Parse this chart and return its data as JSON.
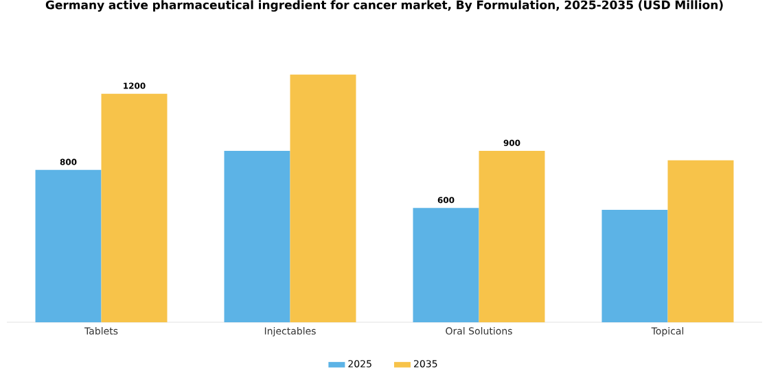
{
  "chart_data": {
    "type": "bar",
    "title": "Germany active pharmaceutical ingredient for cancer market, By Formulation, 2025-2035 (USD Million)",
    "categories": [
      "Tablets",
      "Injectables",
      "Oral Solutions",
      "Topical"
    ],
    "series": [
      {
        "name": "2025",
        "color": "#5cb3e6",
        "values": [
          800,
          900,
          600,
          590
        ],
        "value_labels": [
          "800",
          null,
          "600",
          null
        ]
      },
      {
        "name": "2035",
        "color": "#f7c34a",
        "values": [
          1200,
          1300,
          900,
          850
        ],
        "value_labels": [
          "1200",
          null,
          "900",
          null
        ]
      }
    ],
    "legend": "bottom"
  }
}
